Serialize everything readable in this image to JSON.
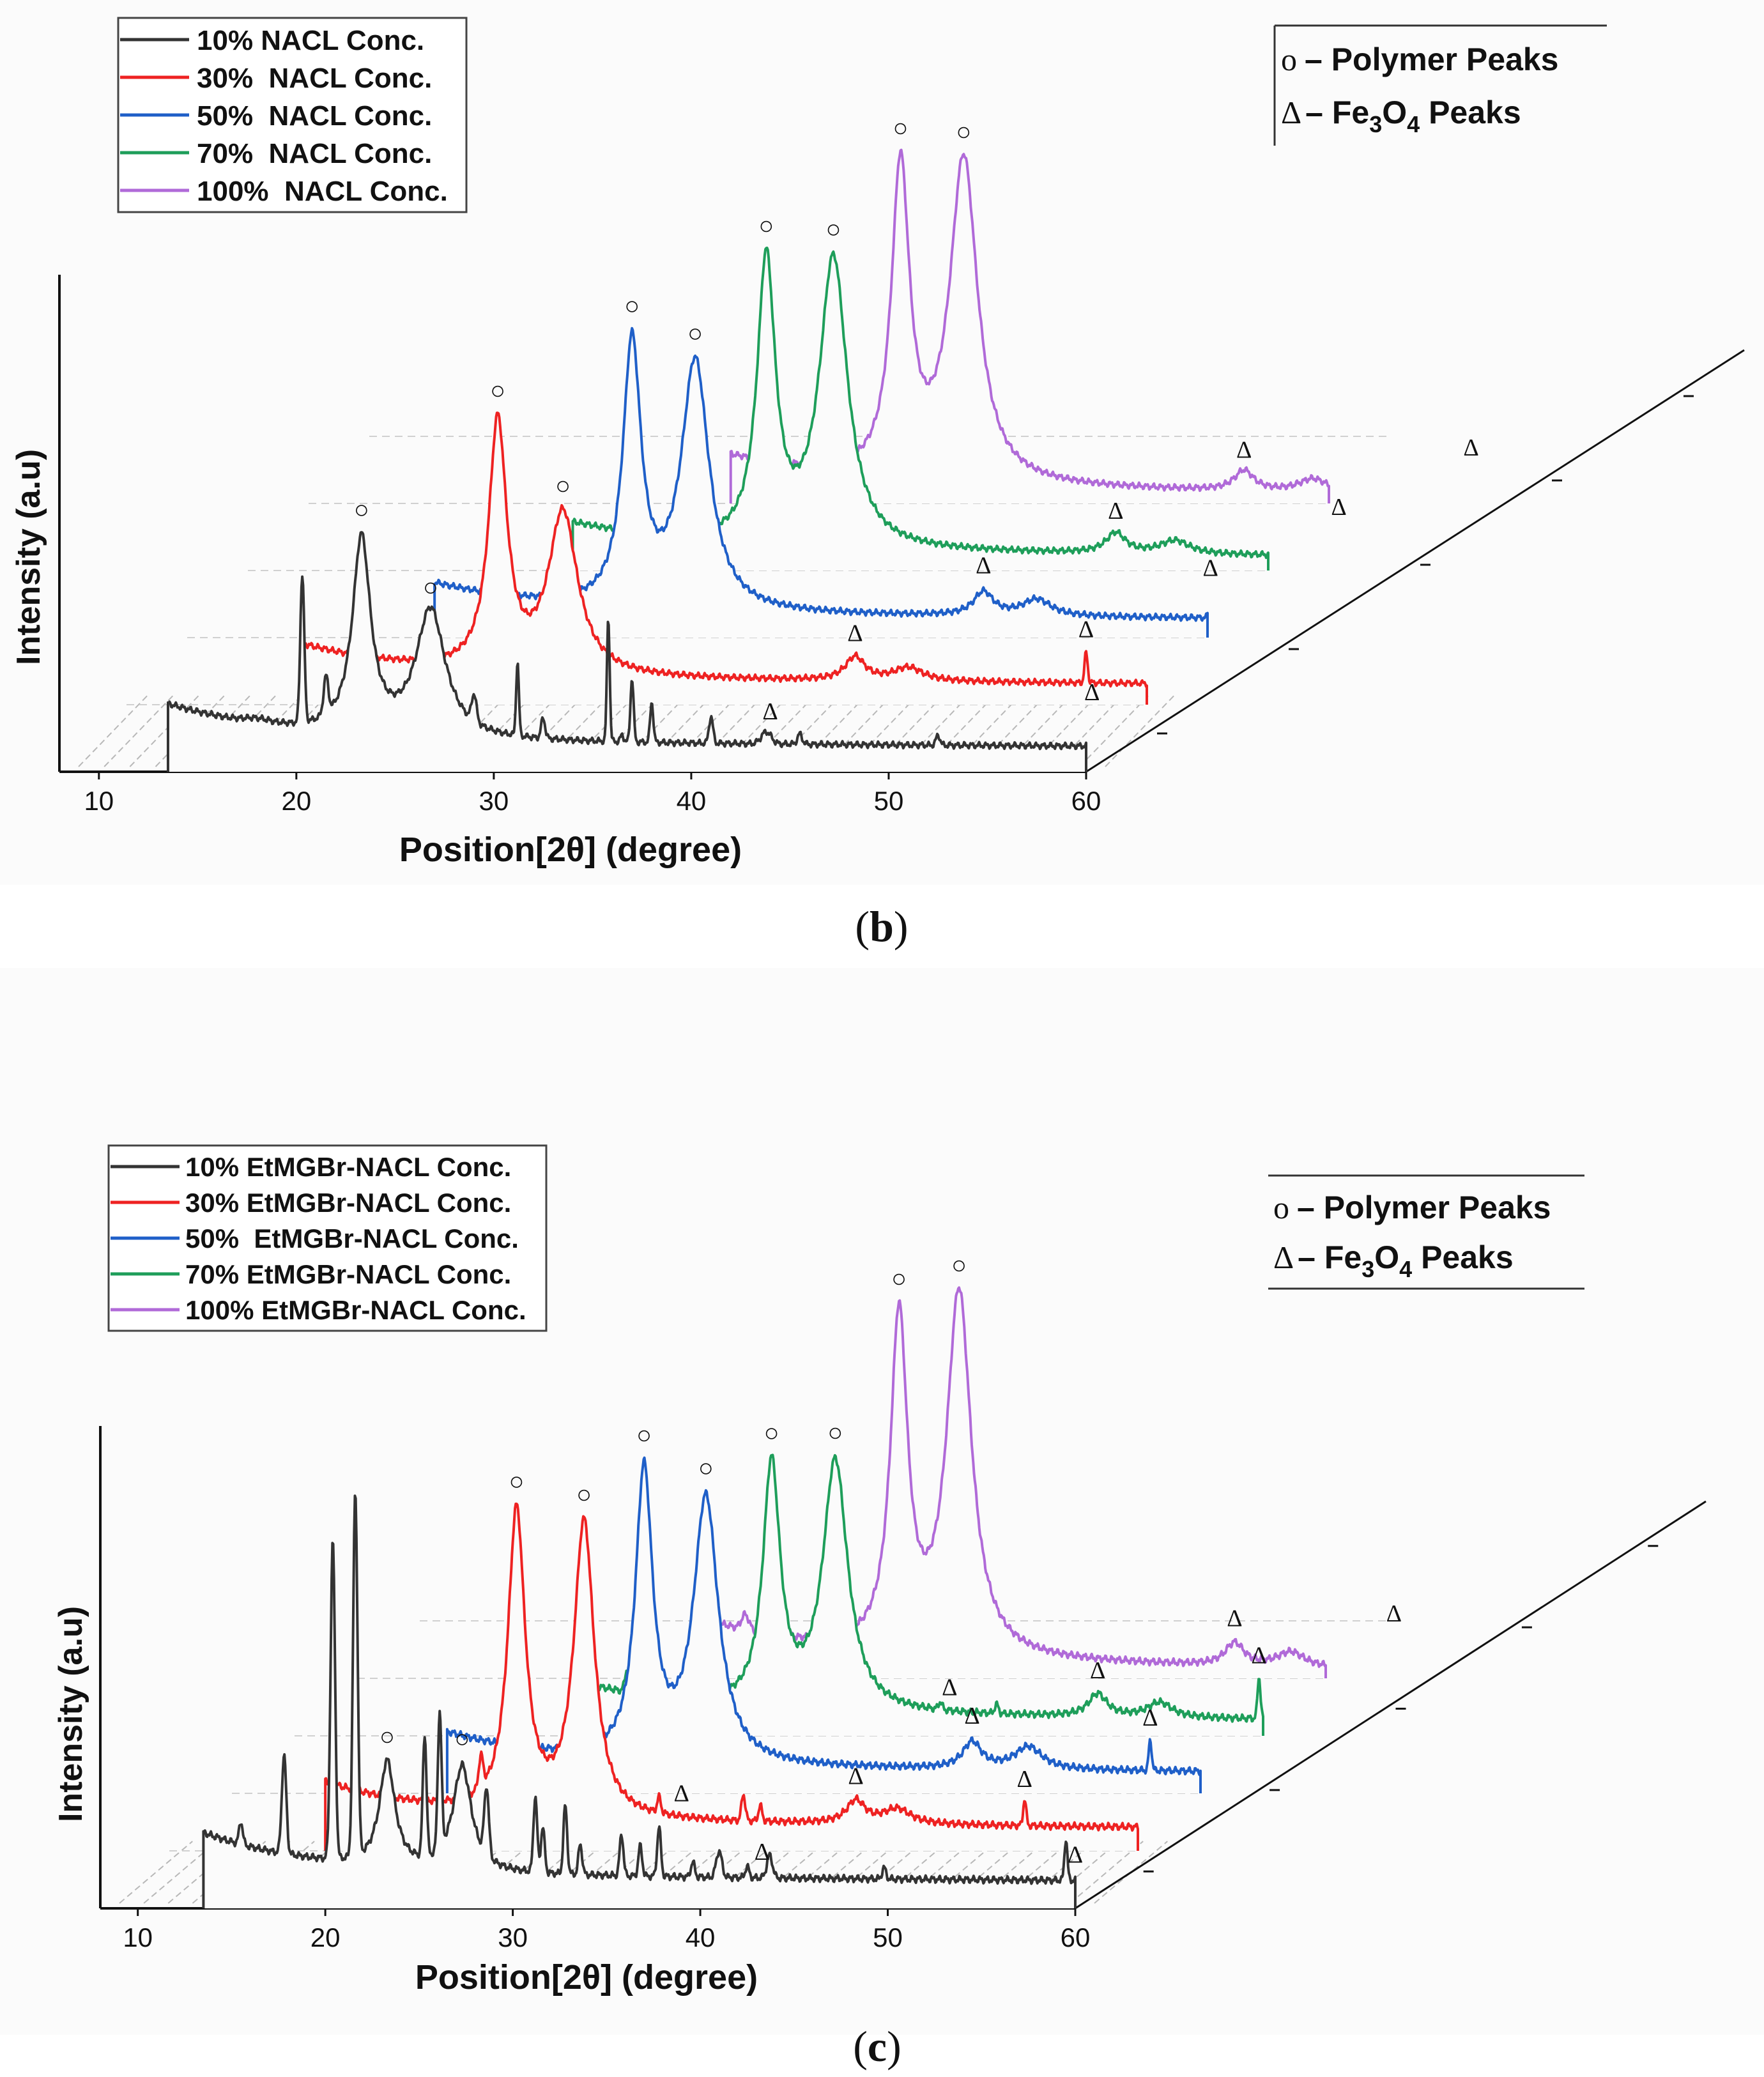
{
  "chart_data": [
    {
      "panel": "b",
      "caption_open": "(",
      "caption_letter": "b",
      "caption_close": ")",
      "type": "line",
      "title": "",
      "xlabel": "Position[2θ] (degree)",
      "ylabel": "Intensity (a.u)",
      "xlim": [
        8,
        60
      ],
      "xticks": [
        "10",
        "20",
        "30",
        "40",
        "50",
        "60"
      ],
      "legend": {
        "placement": "top-left",
        "entries": [
          "10% NACL Conc.",
          "30%  NACL Conc.",
          "50%  NACL Conc.",
          "70%  NACL Conc.",
          "100%  NACL Conc."
        ]
      },
      "key": {
        "placement": "top-right",
        "polymer_symbol": "o",
        "polymer_text": "– Polymer Peaks",
        "fe_symbol": "Δ",
        "fe_text_pre": "– Fe",
        "fe_sub1": "3",
        "fe_text_mid": "O",
        "fe_sub2": "4",
        "fe_text_post": " Peaks"
      },
      "polymer_marker": "○",
      "fe_marker": "Δ",
      "series": [
        {
          "name": "10% NACL Conc.",
          "color": "#333333",
          "x_start": 13.5,
          "x_end": 60,
          "baseline": 0.45,
          "onset": 1.0,
          "end_level": 0.28,
          "broad": [
            [
              23.3,
              2.9,
              0.55
            ],
            [
              26.8,
              1.9,
              0.9
            ]
          ],
          "sharp": [
            [
              18.0,
              0.05,
              0.6
            ],
            [
              20.3,
              2.2,
              0.1
            ],
            [
              21.5,
              0.55,
              0.12
            ],
            [
              29.0,
              0.4,
              0.12
            ],
            [
              31.2,
              1.1,
              0.07
            ],
            [
              32.5,
              0.3,
              0.1
            ],
            [
              35.8,
              1.85,
              0.07
            ],
            [
              36.5,
              0.1,
              0.08
            ],
            [
              37.0,
              0.95,
              0.08
            ],
            [
              38.0,
              0.6,
              0.08
            ],
            [
              41.0,
              0.4,
              0.1
            ],
            [
              43.8,
              0.18,
              0.25
            ],
            [
              45.5,
              0.15,
              0.12
            ],
            [
              52.5,
              0.15,
              0.1
            ],
            [
              60.3,
              0.45,
              0.08
            ]
          ],
          "polymer_peaks": [
            23.3,
            26.8
          ],
          "fe_peaks": [
            44.0,
            60.3
          ]
        },
        {
          "name": "30%  NACL Conc.",
          "color": "#ee2222",
          "x_start": 20.2,
          "x_end": 60,
          "baseline": 0.4,
          "onset": 0.9,
          "end_level": 0.2,
          "broad": [
            [
              30.2,
              3.7,
              0.55
            ],
            [
              33.5,
              2.4,
              0.9
            ],
            [
              48.3,
              0.35,
              0.6
            ],
            [
              51.0,
              0.2,
              0.9
            ]
          ],
          "sharp": [
            [
              60.0,
              0.45,
              0.08
            ]
          ],
          "polymer_peaks": [
            30.2,
            33.5
          ],
          "fe_peaks": [
            48.3,
            60.0
          ]
        },
        {
          "name": "50%  NACL Conc.",
          "color": "#1f5fc8",
          "x_start": 27.0,
          "x_end": 60,
          "baseline": 0.35,
          "onset": 0.8,
          "end_level": 0.22,
          "broad": [
            [
              37.0,
              3.9,
              0.55
            ],
            [
              40.2,
              3.7,
              0.85
            ],
            [
              54.8,
              0.35,
              0.6
            ],
            [
              57.5,
              0.25,
              0.9
            ]
          ],
          "sharp": [
            [
              66.3,
              0.45,
              0.08
            ]
          ],
          "polymer_peaks": [
            37.0,
            40.2
          ],
          "fe_peaks": [
            54.8,
            66.3
          ]
        },
        {
          "name": "70%  NACL Conc.",
          "color": "#1e9e5a",
          "x_start": 34.0,
          "x_end": 60,
          "baseline": 0.3,
          "onset": 0.7,
          "end_level": 0.15,
          "broad": [
            [
              43.8,
              4.2,
              0.55
            ],
            [
              47.2,
              4.3,
              0.85
            ],
            [
              61.5,
              0.3,
              0.6
            ],
            [
              64.5,
              0.2,
              0.9
            ]
          ],
          "sharp": [
            [
              72.8,
              0.4,
              0.08
            ]
          ],
          "polymer_peaks": [
            43.8,
            47.2
          ],
          "fe_peaks": [
            61.5,
            72.8
          ]
        },
        {
          "name": "100%  NACL Conc.",
          "color": "#b06ad8",
          "x_start": 42.0,
          "x_end": 60,
          "baseline": 0.28,
          "onset": 0.7,
          "end_level": 0.08,
          "broad": [
            [
              50.6,
              4.6,
              0.55
            ],
            [
              53.8,
              4.8,
              0.85
            ],
            [
              68.0,
              0.3,
              0.6
            ],
            [
              71.5,
              0.2,
              0.9
            ]
          ],
          "sharp": [
            [
              79.5,
              0.4,
              0.08
            ]
          ],
          "polymer_peaks": [
            50.6,
            53.8
          ],
          "fe_peaks": [
            68.0,
            79.5
          ]
        }
      ]
    },
    {
      "panel": "c",
      "caption_open": "(",
      "caption_letter": "c",
      "caption_close": ")",
      "type": "line",
      "title": "",
      "xlabel": "Position[2θ] (degree)",
      "ylabel": "Intensity (a.u)",
      "xlim": [
        8,
        60
      ],
      "xticks": [
        "10",
        "20",
        "30",
        "40",
        "50",
        "60"
      ],
      "legend": {
        "placement": "top-left",
        "entries": [
          "10% EtMGBr-NACL Conc.",
          "30% EtMGBr-NACL Conc.",
          "50%  EtMGBr-NACL Conc.",
          "70% EtMGBr-NACL Conc.",
          "100% EtMGBr-NACL Conc."
        ]
      },
      "key": {
        "placement": "top-right",
        "polymer_symbol": "o",
        "polymer_text": "– Polymer Peaks",
        "fe_symbol": "Δ",
        "fe_text_pre": "– Fe",
        "fe_sub1": "3",
        "fe_text_mid": "O",
        "fe_sub2": "4",
        "fe_text_post": " Peaks"
      },
      "polymer_marker": "○",
      "fe_marker": "Δ",
      "series": [
        {
          "name": "10% EtMGBr-NACL Conc.",
          "color": "#333333",
          "x_start": 13.5,
          "x_end": 60,
          "baseline": 0.45,
          "onset": 1.0,
          "end_level": 0.25,
          "broad": [
            [
              23.3,
              1.4,
              0.5
            ],
            [
              27.3,
              1.4,
              0.6
            ]
          ],
          "sharp": [
            [
              15.5,
              0.3,
              0.1
            ],
            [
              17.8,
              1.3,
              0.12
            ],
            [
              20.4,
              4.2,
              0.12
            ],
            [
              21.6,
              4.8,
              0.12
            ],
            [
              25.3,
              1.6,
              0.1
            ],
            [
              26.1,
              1.8,
              0.1
            ],
            [
              28.6,
              0.9,
              0.12
            ],
            [
              31.2,
              1.0,
              0.1
            ],
            [
              31.6,
              0.6,
              0.1
            ],
            [
              32.8,
              0.9,
              0.1
            ],
            [
              33.6,
              0.4,
              0.1
            ],
            [
              35.8,
              0.55,
              0.1
            ],
            [
              36.8,
              0.4,
              0.1
            ],
            [
              37.8,
              0.65,
              0.1
            ],
            [
              39.6,
              0.2,
              0.1
            ],
            [
              41.0,
              0.35,
              0.15
            ],
            [
              42.5,
              0.15,
              0.1
            ],
            [
              43.7,
              0.3,
              0.15
            ],
            [
              49.8,
              0.15,
              0.1
            ],
            [
              59.5,
              0.55,
              0.08
            ]
          ],
          "polymer_peaks": [
            23.3,
            27.3
          ],
          "fe_peaks": [
            43.3,
            60.0
          ]
        },
        {
          "name": "30% EtMGBr-NACL Conc.",
          "color": "#ee2222",
          "x_start": 20.0,
          "x_end": 60,
          "baseline": 0.4,
          "onset": 0.9,
          "end_level": 0.2,
          "broad": [
            [
              30.2,
              4.0,
              0.55
            ],
            [
              33.8,
              3.9,
              0.65
            ],
            [
              48.3,
              0.3,
              0.6
            ],
            [
              50.5,
              0.2,
              0.9
            ]
          ],
          "sharp": [
            [
              28.3,
              0.4,
              0.12
            ],
            [
              37.8,
              0.2,
              0.1
            ],
            [
              42.3,
              0.35,
              0.1
            ],
            [
              43.2,
              0.2,
              0.1
            ],
            [
              57.3,
              0.35,
              0.08
            ]
          ],
          "polymer_peaks": [
            30.2,
            33.8
          ],
          "fe_peaks": [
            39.0,
            48.3,
            57.3
          ]
        },
        {
          "name": "50%  EtMGBr-NACL Conc.",
          "color": "#1f5fc8",
          "x_start": 26.5,
          "x_end": 60,
          "baseline": 0.35,
          "onset": 0.8,
          "end_level": 0.22,
          "broad": [
            [
              37.0,
              3.8,
              0.55
            ],
            [
              40.3,
              3.5,
              0.8
            ],
            [
              54.5,
              0.35,
              0.6
            ],
            [
              57.5,
              0.3,
              0.9
            ]
          ],
          "sharp": [
            [
              64.0,
              0.4,
              0.08
            ]
          ],
          "polymer_peaks": [
            37.0,
            40.3
          ],
          "fe_peaks": [
            54.5,
            64.0
          ]
        },
        {
          "name": "70% EtMGBr-NACL Conc.",
          "color": "#1e9e5a",
          "x_start": 33.5,
          "x_end": 60,
          "baseline": 0.3,
          "onset": 0.7,
          "end_level": 0.15,
          "broad": [
            [
              43.8,
              3.2,
              0.55
            ],
            [
              47.2,
              3.3,
              0.8
            ],
            [
              61.2,
              0.3,
              0.6
            ],
            [
              64.5,
              0.2,
              0.8
            ]
          ],
          "sharp": [
            [
              36.1,
              0.3,
              0.12
            ],
            [
              52.8,
              0.1,
              0.1
            ],
            [
              55.8,
              0.12,
              0.1
            ],
            [
              69.8,
              0.55,
              0.08
            ]
          ],
          "polymer_peaks": [
            43.8,
            47.2
          ],
          "fe_peaks": [
            53.3,
            61.2,
            69.8
          ]
        },
        {
          "name": "100% EtMGBr-NACL Conc.",
          "color": "#b06ad8",
          "x_start": 41.0,
          "x_end": 60,
          "baseline": 0.28,
          "onset": 0.7,
          "end_level": 0.05,
          "broad": [
            [
              50.6,
              4.4,
              0.55
            ],
            [
              53.8,
              4.8,
              0.8
            ],
            [
              68.5,
              0.3,
              0.6
            ],
            [
              71.5,
              0.2,
              0.9
            ]
          ],
          "sharp": [
            [
              42.4,
              0.2,
              0.2
            ],
            [
              77.0,
              0.45,
              0.08
            ]
          ],
          "polymer_peaks": [
            50.6,
            53.8
          ],
          "fe_peaks": [
            68.5,
            77.0
          ]
        }
      ]
    }
  ]
}
